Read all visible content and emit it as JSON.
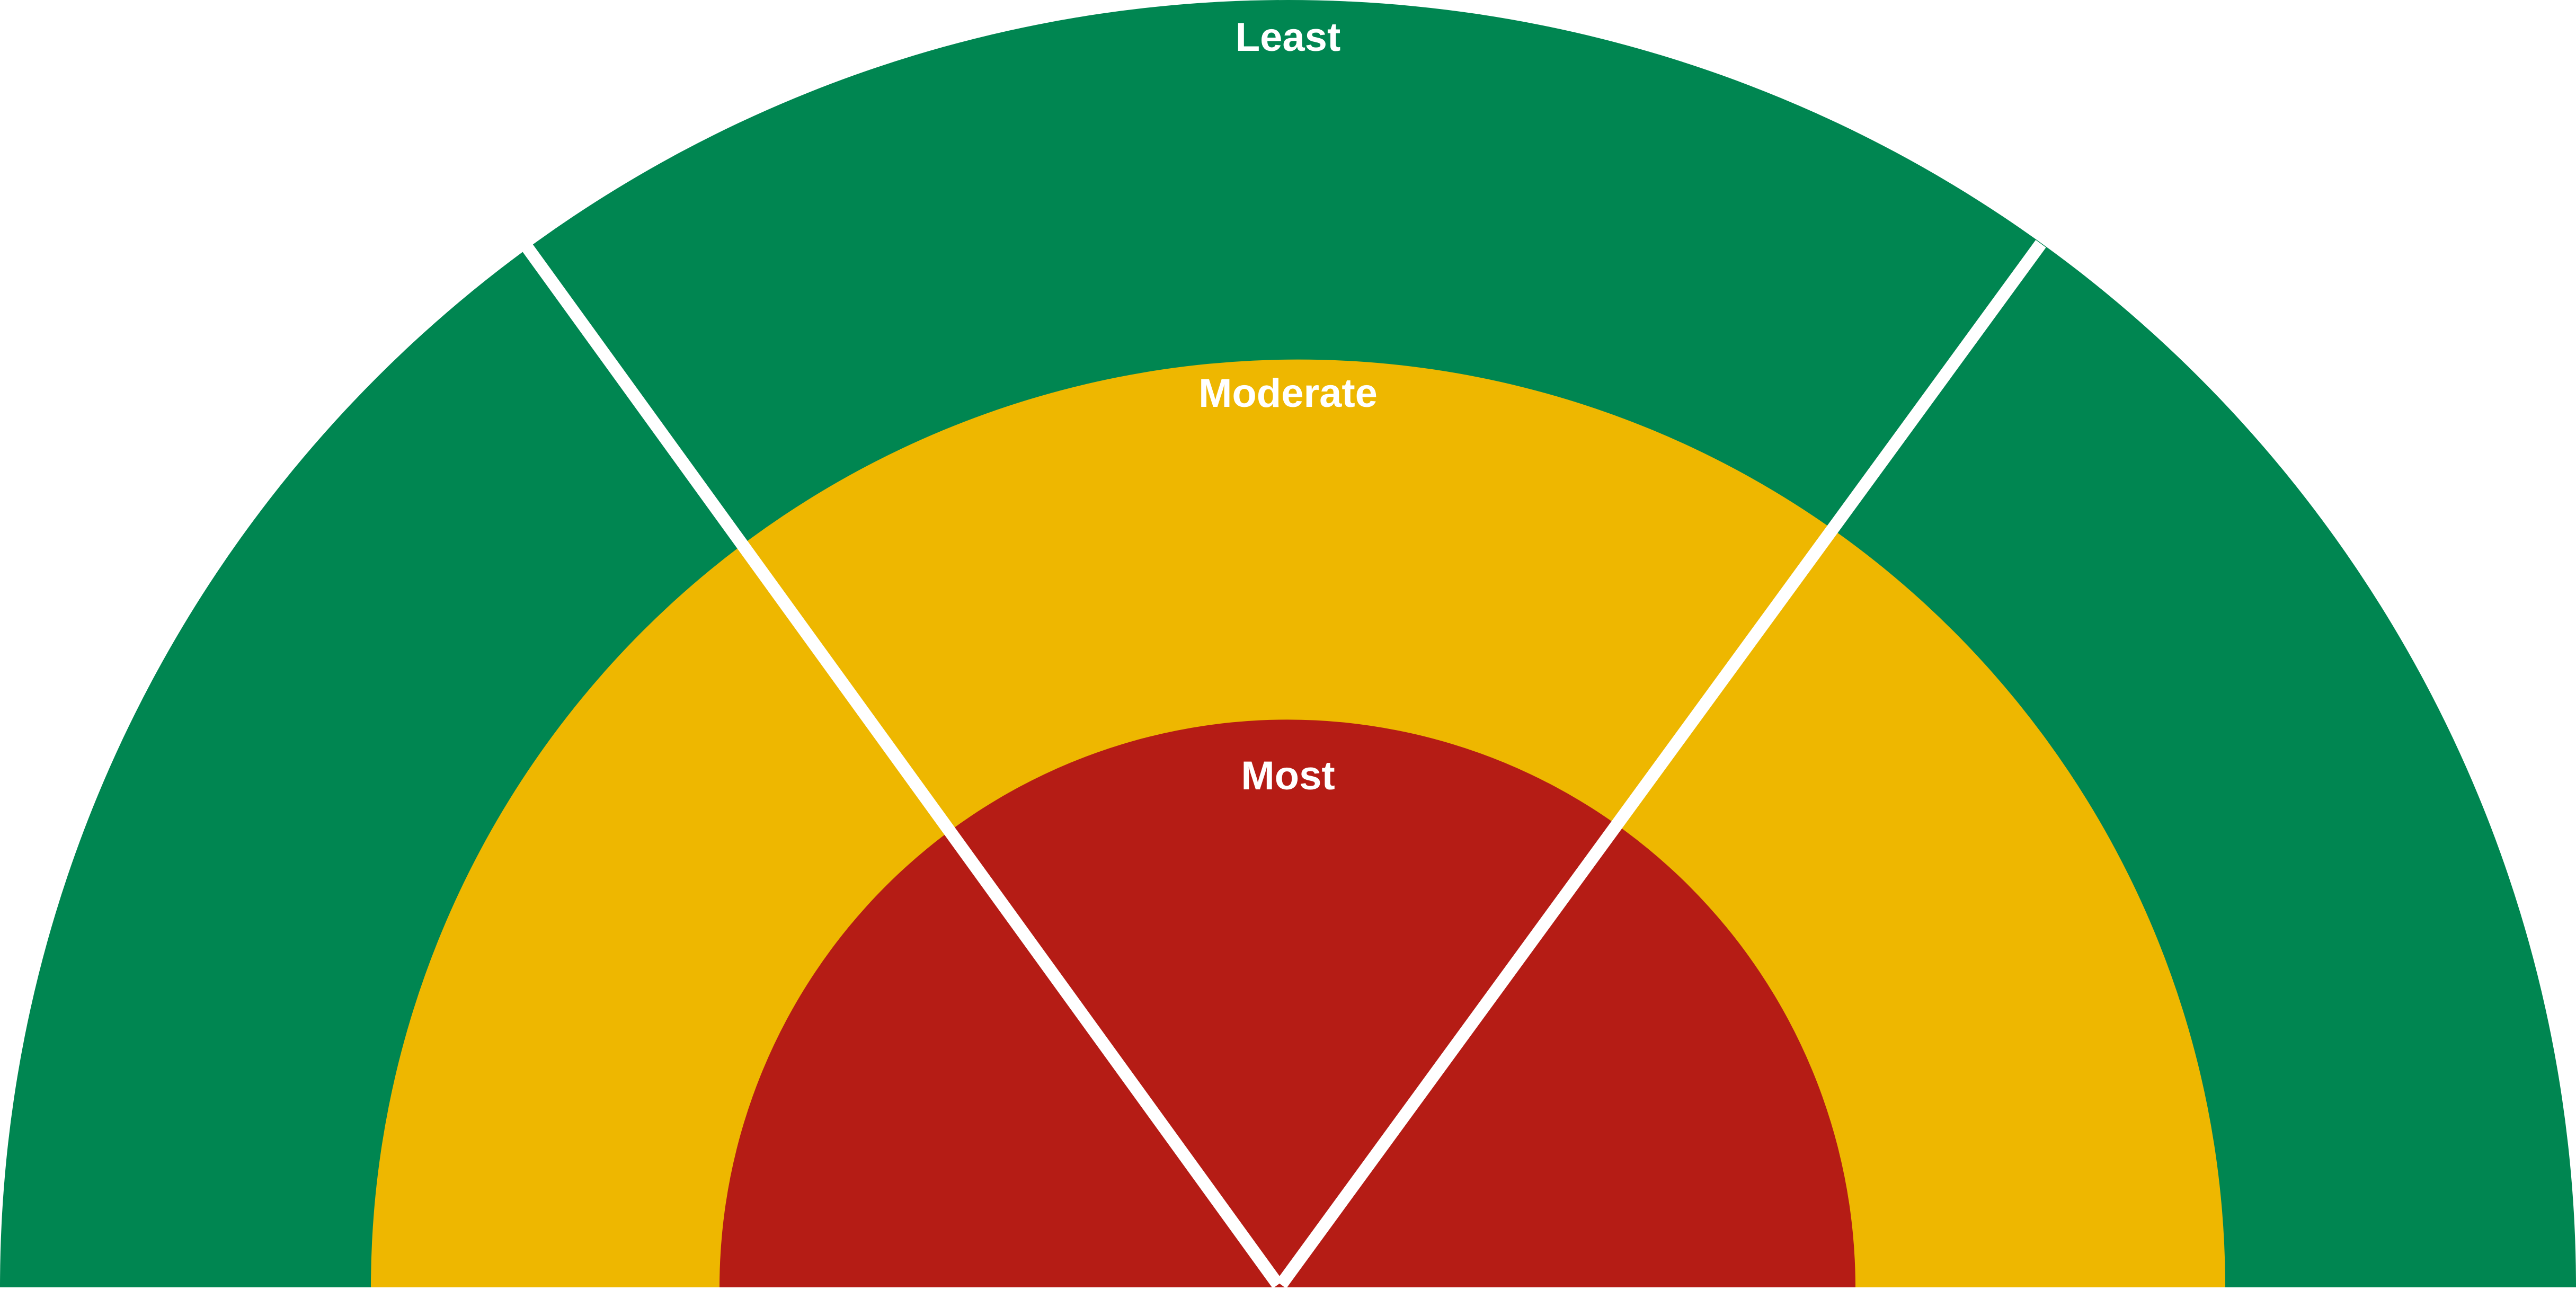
{
  "diagram": {
    "rings": [
      {
        "label": "Least",
        "color": "#008651"
      },
      {
        "label": "Moderate",
        "color": "#EEB700"
      },
      {
        "label": "Most",
        "color": "#B51C15"
      }
    ],
    "divider_color": "#ffffff",
    "background": "#ffffff"
  }
}
